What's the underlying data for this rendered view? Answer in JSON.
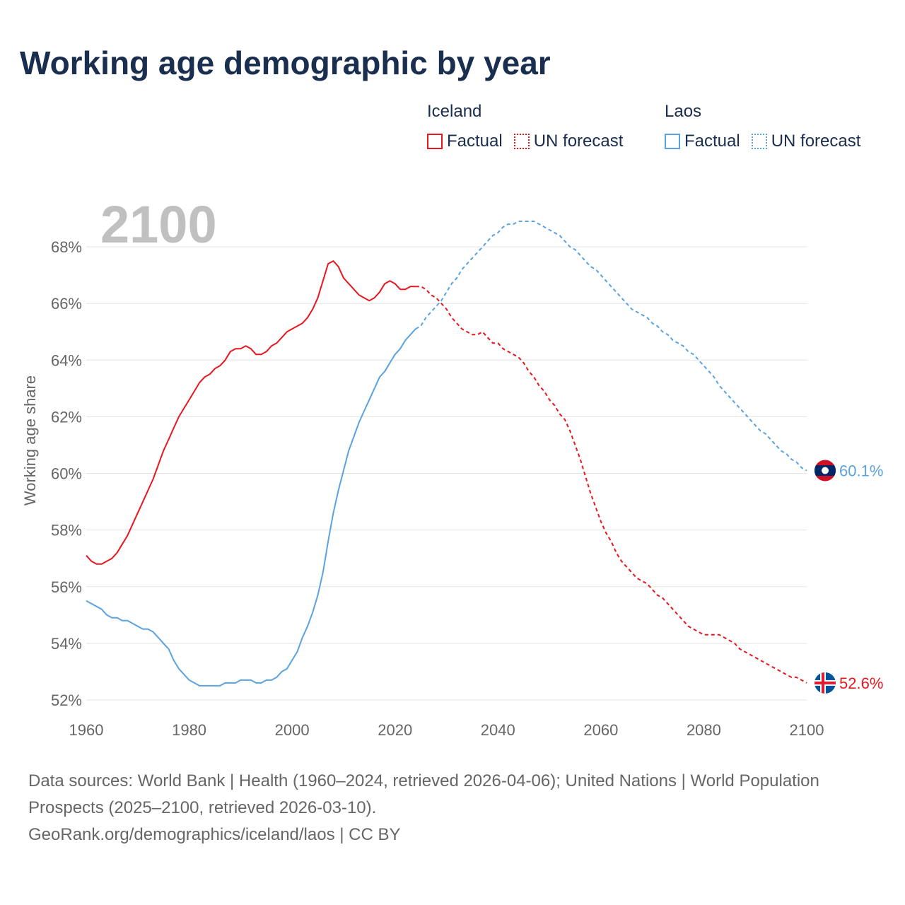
{
  "title": "Working age demographic by year",
  "legend": {
    "groups": [
      {
        "name": "Iceland",
        "color": "#e8171f",
        "items": [
          {
            "label": "Factual",
            "style": "solid"
          },
          {
            "label": "UN forecast",
            "style": "dotted"
          }
        ]
      },
      {
        "name": "Laos",
        "color": "#5aa2e0",
        "items": [
          {
            "label": "Factual",
            "style": "solid"
          },
          {
            "label": "UN forecast",
            "style": "dotted"
          }
        ]
      }
    ]
  },
  "footer": {
    "sources": "Data sources: World Bank | Health (1960–2024, retrieved 2026-04-06); United Nations | World Population Prospects (2025–2100, retrieved 2026-03-10).",
    "attribution": "GeoRank.org/demographics/iceland/laos | CC BY"
  },
  "chart_data": {
    "type": "line",
    "title": "Working age demographic by year",
    "year_overlay": "2100",
    "xlabel": "",
    "ylabel": "Working age share",
    "xlim": [
      1960,
      2100
    ],
    "ylim": [
      51.5,
      69.5
    ],
    "x_ticks": [
      1960,
      1980,
      2000,
      2020,
      2040,
      2060,
      2080,
      2100
    ],
    "y_ticks": [
      52,
      54,
      56,
      58,
      60,
      62,
      64,
      66,
      68
    ],
    "y_tick_labels": [
      "52%",
      "54%",
      "56%",
      "58%",
      "60%",
      "62%",
      "64%",
      "66%",
      "68%"
    ],
    "factual_until": 2024,
    "grid": true,
    "series": [
      {
        "name": "Iceland",
        "color": "#e8171f",
        "flag": "iceland-flag-icon",
        "end_label": "52.6%",
        "points": [
          [
            1960,
            57.1
          ],
          [
            1961,
            56.9
          ],
          [
            1962,
            56.8
          ],
          [
            1963,
            56.8
          ],
          [
            1964,
            56.9
          ],
          [
            1965,
            57.0
          ],
          [
            1966,
            57.2
          ],
          [
            1967,
            57.5
          ],
          [
            1968,
            57.8
          ],
          [
            1969,
            58.2
          ],
          [
            1970,
            58.6
          ],
          [
            1971,
            59.0
          ],
          [
            1972,
            59.4
          ],
          [
            1973,
            59.8
          ],
          [
            1974,
            60.3
          ],
          [
            1975,
            60.8
          ],
          [
            1976,
            61.2
          ],
          [
            1977,
            61.6
          ],
          [
            1978,
            62.0
          ],
          [
            1979,
            62.3
          ],
          [
            1980,
            62.6
          ],
          [
            1981,
            62.9
          ],
          [
            1982,
            63.2
          ],
          [
            1983,
            63.4
          ],
          [
            1984,
            63.5
          ],
          [
            1985,
            63.7
          ],
          [
            1986,
            63.8
          ],
          [
            1987,
            64.0
          ],
          [
            1988,
            64.3
          ],
          [
            1989,
            64.4
          ],
          [
            1990,
            64.4
          ],
          [
            1991,
            64.5
          ],
          [
            1992,
            64.4
          ],
          [
            1993,
            64.2
          ],
          [
            1994,
            64.2
          ],
          [
            1995,
            64.3
          ],
          [
            1996,
            64.5
          ],
          [
            1997,
            64.6
          ],
          [
            1998,
            64.8
          ],
          [
            1999,
            65.0
          ],
          [
            2000,
            65.1
          ],
          [
            2001,
            65.2
          ],
          [
            2002,
            65.3
          ],
          [
            2003,
            65.5
          ],
          [
            2004,
            65.8
          ],
          [
            2005,
            66.2
          ],
          [
            2006,
            66.8
          ],
          [
            2007,
            67.4
          ],
          [
            2008,
            67.5
          ],
          [
            2009,
            67.3
          ],
          [
            2010,
            66.9
          ],
          [
            2011,
            66.7
          ],
          [
            2012,
            66.5
          ],
          [
            2013,
            66.3
          ],
          [
            2014,
            66.2
          ],
          [
            2015,
            66.1
          ],
          [
            2016,
            66.2
          ],
          [
            2017,
            66.4
          ],
          [
            2018,
            66.7
          ],
          [
            2019,
            66.8
          ],
          [
            2020,
            66.7
          ],
          [
            2021,
            66.5
          ],
          [
            2022,
            66.5
          ],
          [
            2023,
            66.6
          ],
          [
            2024,
            66.6
          ],
          [
            2025,
            66.6
          ],
          [
            2026,
            66.5
          ],
          [
            2027,
            66.3
          ],
          [
            2028,
            66.2
          ],
          [
            2029,
            66.0
          ],
          [
            2030,
            65.8
          ],
          [
            2031,
            65.5
          ],
          [
            2032,
            65.3
          ],
          [
            2033,
            65.1
          ],
          [
            2034,
            65.0
          ],
          [
            2035,
            64.9
          ],
          [
            2036,
            64.9
          ],
          [
            2037,
            65.0
          ],
          [
            2038,
            64.8
          ],
          [
            2039,
            64.6
          ],
          [
            2040,
            64.6
          ],
          [
            2041,
            64.4
          ],
          [
            2042,
            64.3
          ],
          [
            2043,
            64.2
          ],
          [
            2044,
            64.1
          ],
          [
            2045,
            63.9
          ],
          [
            2046,
            63.6
          ],
          [
            2047,
            63.4
          ],
          [
            2048,
            63.1
          ],
          [
            2049,
            62.9
          ],
          [
            2050,
            62.6
          ],
          [
            2051,
            62.4
          ],
          [
            2052,
            62.1
          ],
          [
            2053,
            61.9
          ],
          [
            2054,
            61.5
          ],
          [
            2055,
            61.0
          ],
          [
            2056,
            60.5
          ],
          [
            2057,
            59.9
          ],
          [
            2058,
            59.3
          ],
          [
            2059,
            58.8
          ],
          [
            2060,
            58.3
          ],
          [
            2061,
            57.9
          ],
          [
            2062,
            57.6
          ],
          [
            2063,
            57.2
          ],
          [
            2064,
            56.9
          ],
          [
            2065,
            56.7
          ],
          [
            2066,
            56.5
          ],
          [
            2067,
            56.3
          ],
          [
            2068,
            56.2
          ],
          [
            2069,
            56.1
          ],
          [
            2070,
            55.9
          ],
          [
            2071,
            55.7
          ],
          [
            2072,
            55.6
          ],
          [
            2073,
            55.4
          ],
          [
            2074,
            55.2
          ],
          [
            2075,
            55.0
          ],
          [
            2076,
            54.8
          ],
          [
            2077,
            54.6
          ],
          [
            2078,
            54.5
          ],
          [
            2079,
            54.4
          ],
          [
            2080,
            54.3
          ],
          [
            2081,
            54.3
          ],
          [
            2082,
            54.3
          ],
          [
            2083,
            54.3
          ],
          [
            2084,
            54.2
          ],
          [
            2085,
            54.1
          ],
          [
            2086,
            54.0
          ],
          [
            2087,
            53.8
          ],
          [
            2088,
            53.7
          ],
          [
            2089,
            53.6
          ],
          [
            2090,
            53.5
          ],
          [
            2091,
            53.4
          ],
          [
            2092,
            53.3
          ],
          [
            2093,
            53.2
          ],
          [
            2094,
            53.1
          ],
          [
            2095,
            53.0
          ],
          [
            2096,
            52.9
          ],
          [
            2097,
            52.8
          ],
          [
            2098,
            52.8
          ],
          [
            2099,
            52.7
          ],
          [
            2100,
            52.6
          ]
        ]
      },
      {
        "name": "Laos",
        "color": "#5aa2e0",
        "flag": "laos-flag-icon",
        "end_label": "60.1%",
        "points": [
          [
            1960,
            55.5
          ],
          [
            1961,
            55.4
          ],
          [
            1962,
            55.3
          ],
          [
            1963,
            55.2
          ],
          [
            1964,
            55.0
          ],
          [
            1965,
            54.9
          ],
          [
            1966,
            54.9
          ],
          [
            1967,
            54.8
          ],
          [
            1968,
            54.8
          ],
          [
            1969,
            54.7
          ],
          [
            1970,
            54.6
          ],
          [
            1971,
            54.5
          ],
          [
            1972,
            54.5
          ],
          [
            1973,
            54.4
          ],
          [
            1974,
            54.2
          ],
          [
            1975,
            54.0
          ],
          [
            1976,
            53.8
          ],
          [
            1977,
            53.4
          ],
          [
            1978,
            53.1
          ],
          [
            1979,
            52.9
          ],
          [
            1980,
            52.7
          ],
          [
            1981,
            52.6
          ],
          [
            1982,
            52.5
          ],
          [
            1983,
            52.5
          ],
          [
            1984,
            52.5
          ],
          [
            1985,
            52.5
          ],
          [
            1986,
            52.5
          ],
          [
            1987,
            52.6
          ],
          [
            1988,
            52.6
          ],
          [
            1989,
            52.6
          ],
          [
            1990,
            52.7
          ],
          [
            1991,
            52.7
          ],
          [
            1992,
            52.7
          ],
          [
            1993,
            52.6
          ],
          [
            1994,
            52.6
          ],
          [
            1995,
            52.7
          ],
          [
            1996,
            52.7
          ],
          [
            1997,
            52.8
          ],
          [
            1998,
            53.0
          ],
          [
            1999,
            53.1
          ],
          [
            2000,
            53.4
          ],
          [
            2001,
            53.7
          ],
          [
            2002,
            54.2
          ],
          [
            2003,
            54.6
          ],
          [
            2004,
            55.1
          ],
          [
            2005,
            55.7
          ],
          [
            2006,
            56.5
          ],
          [
            2007,
            57.6
          ],
          [
            2008,
            58.6
          ],
          [
            2009,
            59.4
          ],
          [
            2010,
            60.1
          ],
          [
            2011,
            60.8
          ],
          [
            2012,
            61.3
          ],
          [
            2013,
            61.8
          ],
          [
            2014,
            62.2
          ],
          [
            2015,
            62.6
          ],
          [
            2016,
            63.0
          ],
          [
            2017,
            63.4
          ],
          [
            2018,
            63.6
          ],
          [
            2019,
            63.9
          ],
          [
            2020,
            64.2
          ],
          [
            2021,
            64.4
          ],
          [
            2022,
            64.7
          ],
          [
            2023,
            64.9
          ],
          [
            2024,
            65.1
          ],
          [
            2025,
            65.2
          ],
          [
            2026,
            65.5
          ],
          [
            2027,
            65.7
          ],
          [
            2028,
            65.9
          ],
          [
            2029,
            66.1
          ],
          [
            2030,
            66.4
          ],
          [
            2031,
            66.7
          ],
          [
            2032,
            66.9
          ],
          [
            2033,
            67.2
          ],
          [
            2034,
            67.4
          ],
          [
            2035,
            67.6
          ],
          [
            2036,
            67.8
          ],
          [
            2037,
            68.0
          ],
          [
            2038,
            68.2
          ],
          [
            2039,
            68.4
          ],
          [
            2040,
            68.5
          ],
          [
            2041,
            68.7
          ],
          [
            2042,
            68.8
          ],
          [
            2043,
            68.8
          ],
          [
            2044,
            68.9
          ],
          [
            2045,
            68.9
          ],
          [
            2046,
            68.9
          ],
          [
            2047,
            68.9
          ],
          [
            2048,
            68.8
          ],
          [
            2049,
            68.7
          ],
          [
            2050,
            68.6
          ],
          [
            2051,
            68.5
          ],
          [
            2052,
            68.4
          ],
          [
            2053,
            68.2
          ],
          [
            2054,
            68.0
          ],
          [
            2055,
            67.9
          ],
          [
            2056,
            67.7
          ],
          [
            2057,
            67.5
          ],
          [
            2058,
            67.3
          ],
          [
            2059,
            67.2
          ],
          [
            2060,
            67.0
          ],
          [
            2061,
            66.8
          ],
          [
            2062,
            66.6
          ],
          [
            2063,
            66.4
          ],
          [
            2064,
            66.2
          ],
          [
            2065,
            66.0
          ],
          [
            2066,
            65.8
          ],
          [
            2067,
            65.7
          ],
          [
            2068,
            65.6
          ],
          [
            2069,
            65.5
          ],
          [
            2070,
            65.3
          ],
          [
            2071,
            65.2
          ],
          [
            2072,
            65.0
          ],
          [
            2073,
            64.9
          ],
          [
            2074,
            64.7
          ],
          [
            2075,
            64.6
          ],
          [
            2076,
            64.5
          ],
          [
            2077,
            64.3
          ],
          [
            2078,
            64.2
          ],
          [
            2079,
            64.0
          ],
          [
            2080,
            63.8
          ],
          [
            2081,
            63.6
          ],
          [
            2082,
            63.4
          ],
          [
            2083,
            63.1
          ],
          [
            2084,
            62.9
          ],
          [
            2085,
            62.7
          ],
          [
            2086,
            62.5
          ],
          [
            2087,
            62.3
          ],
          [
            2088,
            62.1
          ],
          [
            2089,
            61.9
          ],
          [
            2090,
            61.7
          ],
          [
            2091,
            61.5
          ],
          [
            2092,
            61.4
          ],
          [
            2093,
            61.2
          ],
          [
            2094,
            61.0
          ],
          [
            2095,
            60.8
          ],
          [
            2096,
            60.7
          ],
          [
            2097,
            60.5
          ],
          [
            2098,
            60.4
          ],
          [
            2099,
            60.2
          ],
          [
            2100,
            60.1
          ]
        ]
      }
    ]
  }
}
